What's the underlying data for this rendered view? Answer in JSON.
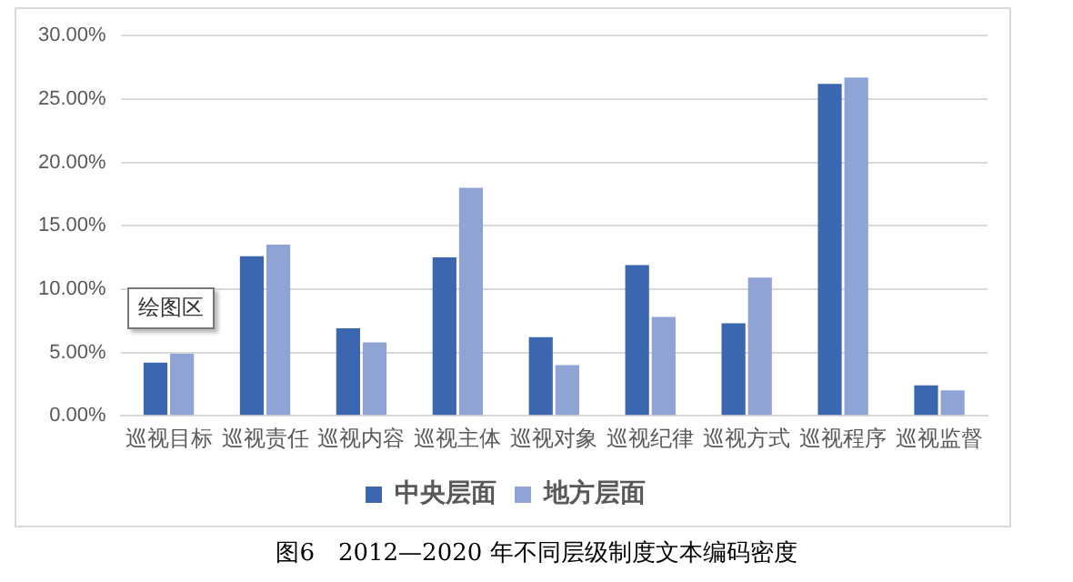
{
  "chart_data": {
    "type": "bar",
    "categories": [
      "巡视目标",
      "巡视责任",
      "巡视内容",
      "巡视主体",
      "巡视对象",
      "巡视纪律",
      "巡视方式",
      "巡视程序",
      "巡视监督"
    ],
    "series": [
      {
        "name": "中央层面",
        "color": "#3c66b0",
        "values": [
          4.2,
          12.6,
          6.9,
          12.5,
          6.2,
          11.9,
          7.3,
          26.2,
          2.4
        ]
      },
      {
        "name": "地方层面",
        "color": "#8fa3d4",
        "values": [
          4.9,
          13.5,
          5.8,
          18.0,
          4.0,
          7.8,
          10.9,
          26.7,
          2.0
        ]
      }
    ],
    "ylim": [
      0,
      30
    ],
    "yticks": [
      {
        "value": 0,
        "label": "0.00%"
      },
      {
        "value": 5,
        "label": "5.00%"
      },
      {
        "value": 10,
        "label": "10.00%"
      },
      {
        "value": 15,
        "label": "15.00%"
      },
      {
        "value": 20,
        "label": "20.00%"
      },
      {
        "value": 25,
        "label": "25.00%"
      },
      {
        "value": 30,
        "label": "30.00%"
      }
    ],
    "grid": "y",
    "legend": "bottom",
    "annotations": [
      "绘图区",
      "图6　2012—2020 年不同层级制度文本编码密度"
    ]
  }
}
